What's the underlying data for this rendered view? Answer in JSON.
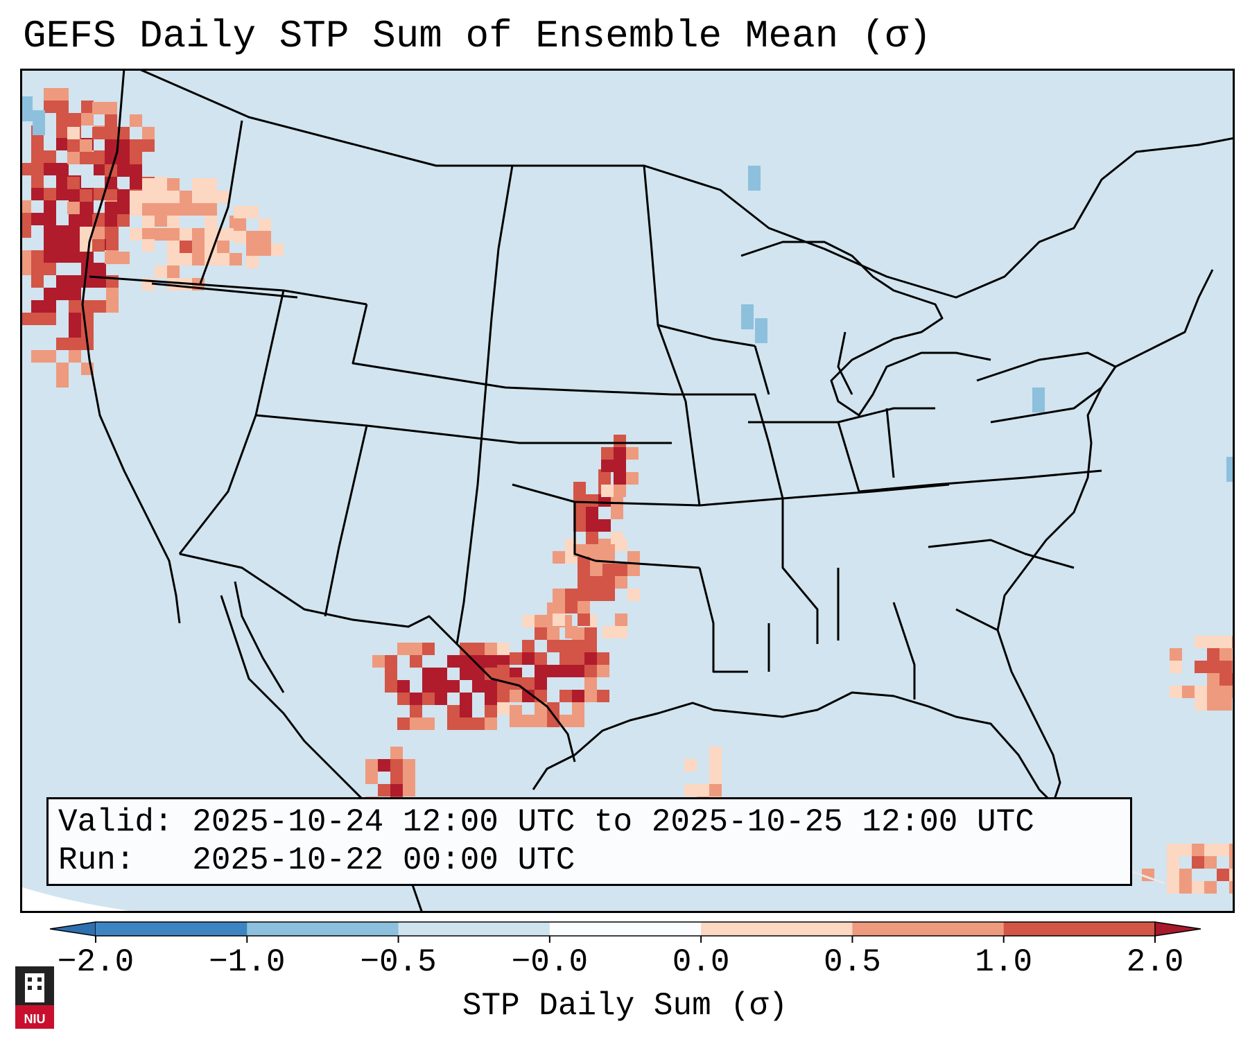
{
  "title": "GEFS Daily STP Sum of Ensemble Mean (σ)",
  "info": {
    "valid_line": "Valid: 2025-10-24 12:00 UTC to 2025-10-25 12:00 UTC",
    "run_line": "Run:   2025-10-22 00:00 UTC"
  },
  "colorbar": {
    "label": "STP Daily Sum (σ)",
    "ticks": [
      "−2.0",
      "−1.0",
      "−0.5",
      "−0.0",
      "0.0",
      "0.5",
      "1.0",
      "2.0"
    ],
    "bin_colors": [
      "#3d85c2",
      "#8dc0dd",
      "#cfe3ef",
      "#fbfcfe",
      "#fcd7c1",
      "#ee9a7e",
      "#d25547",
      "#b01c2c"
    ],
    "under_color": "#2e6fb0",
    "over_color": "#a8192b"
  },
  "map": {
    "background_color": "#d1e4ef",
    "field": "STP daily sum anomaly (σ)",
    "region": "Continental United States",
    "high_value_areas": [
      "Pacific Northwest coast",
      "Southern Plains / Texas",
      "Oklahoma / Kansas",
      "Western Atlantic near Cuba"
    ]
  },
  "logo": {
    "text": "NIU"
  }
}
